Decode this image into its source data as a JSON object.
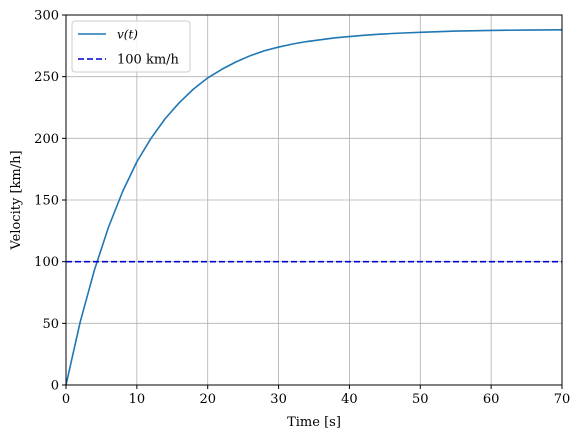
{
  "chart_data": {
    "type": "line",
    "xlabel": "Time [s]",
    "ylabel": "Velocity [km/h]",
    "xlim": [
      0,
      70
    ],
    "ylim": [
      0,
      300
    ],
    "xticks": [
      0,
      10,
      20,
      30,
      40,
      50,
      60,
      70
    ],
    "yticks": [
      0,
      50,
      100,
      150,
      200,
      250,
      300
    ],
    "grid": true,
    "legend_position": "upper-left",
    "series": [
      {
        "name": "v(t)",
        "color": "#1f77b4",
        "style": "solid",
        "x": [
          0,
          2,
          4,
          6,
          8,
          10,
          12,
          14,
          16,
          18,
          20,
          22,
          24,
          26,
          28,
          30,
          32,
          34,
          36,
          38,
          40,
          42,
          44,
          46,
          48,
          50,
          55,
          60,
          65,
          70
        ],
        "y": [
          0,
          51,
          93,
          128,
          157,
          181,
          200,
          216,
          229,
          240,
          249,
          256,
          262,
          267,
          271,
          274,
          276.5,
          278.5,
          280,
          281.5,
          282.5,
          283.5,
          284.3,
          285,
          285.5,
          286,
          287,
          287.5,
          287.8,
          288
        ]
      },
      {
        "name": "100 km/h",
        "color": "#0000cc",
        "style": "dashed",
        "x": [
          0,
          70
        ],
        "y": [
          100,
          100
        ]
      }
    ]
  }
}
